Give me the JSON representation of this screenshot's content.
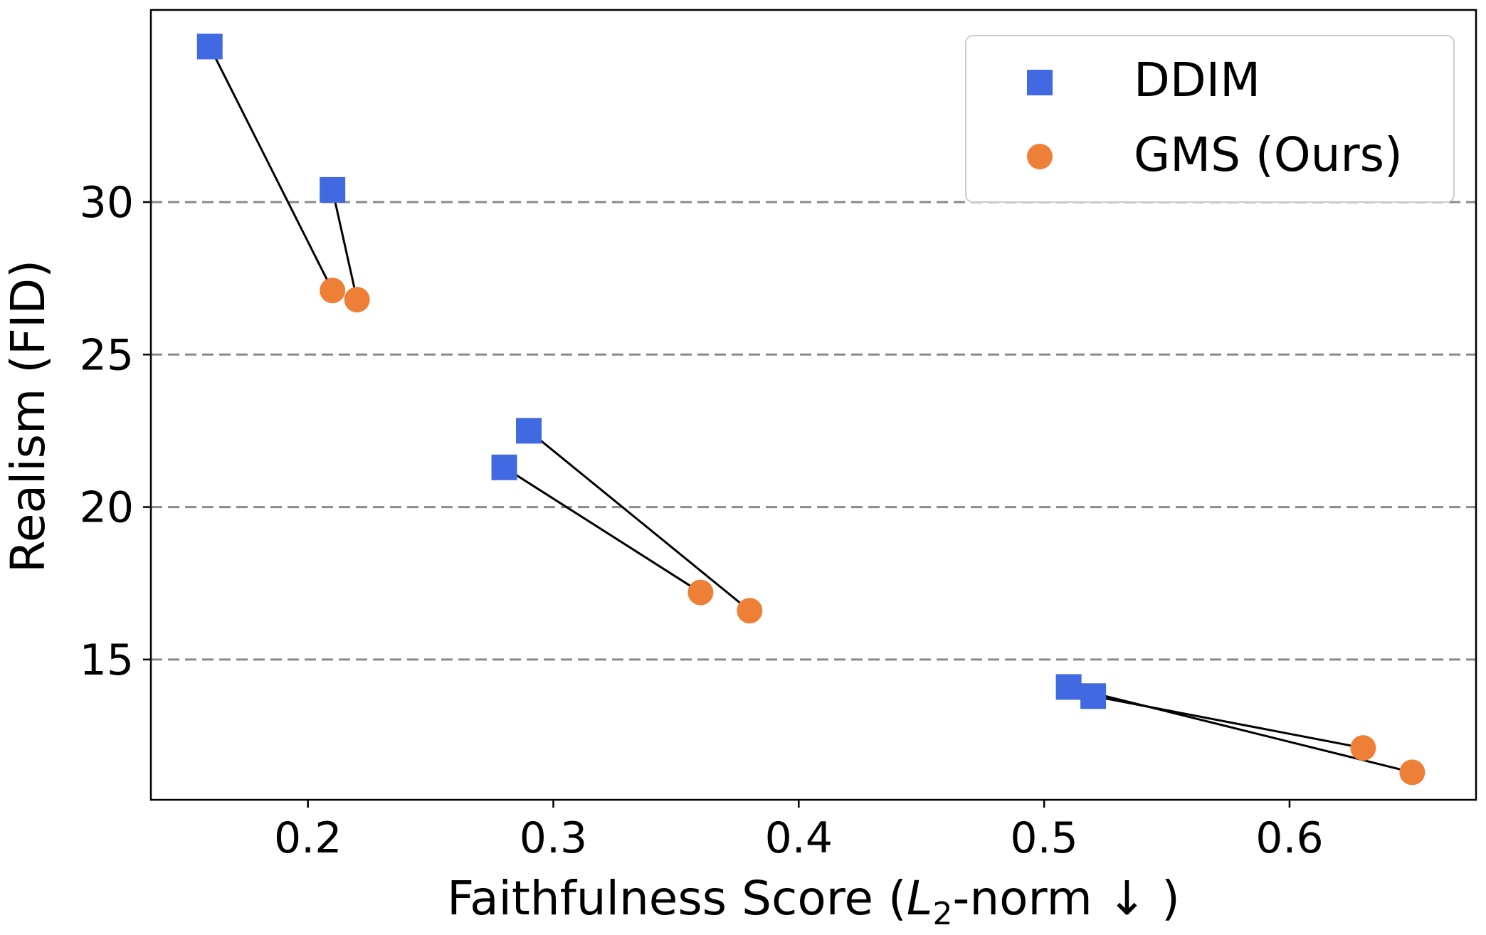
{
  "chart_data": {
    "type": "scatter",
    "title": "",
    "xlabel_parts": {
      "pre": "Faithfulness Score (",
      "var": "L",
      "sub": "2",
      "post": "-norm  ↓ )"
    },
    "ylabel": "Realism (FID)",
    "xlim": [
      0.136,
      0.676
    ],
    "ylim": [
      10.4,
      36.3
    ],
    "xticks": [
      0.2,
      0.3,
      0.4,
      0.5,
      0.6
    ],
    "xtick_labels": [
      "0.2",
      "0.3",
      "0.4",
      "0.5",
      "0.6"
    ],
    "yticks": [
      15,
      20,
      25,
      30
    ],
    "ytick_labels": [
      "15",
      "20",
      "25",
      "30"
    ],
    "grid": "horizontal dashed",
    "legend_position": "top-right",
    "series": [
      {
        "name": "DDIM",
        "marker": "square",
        "color": "#4169e1",
        "points": [
          [
            0.16,
            35.1
          ],
          [
            0.21,
            30.4
          ],
          [
            0.29,
            22.5
          ],
          [
            0.28,
            21.3
          ],
          [
            0.51,
            14.1
          ],
          [
            0.52,
            13.8
          ]
        ]
      },
      {
        "name": "GMS (Ours)",
        "marker": "circle",
        "color": "#ed7f36",
        "points": [
          [
            0.21,
            27.1
          ],
          [
            0.22,
            26.8
          ],
          [
            0.38,
            16.6
          ],
          [
            0.36,
            17.2
          ],
          [
            0.65,
            11.3
          ],
          [
            0.63,
            12.1
          ]
        ]
      }
    ],
    "connections": [
      [
        0,
        0
      ],
      [
        1,
        1
      ],
      [
        2,
        2
      ],
      [
        3,
        3
      ],
      [
        4,
        4
      ],
      [
        5,
        5
      ]
    ]
  }
}
